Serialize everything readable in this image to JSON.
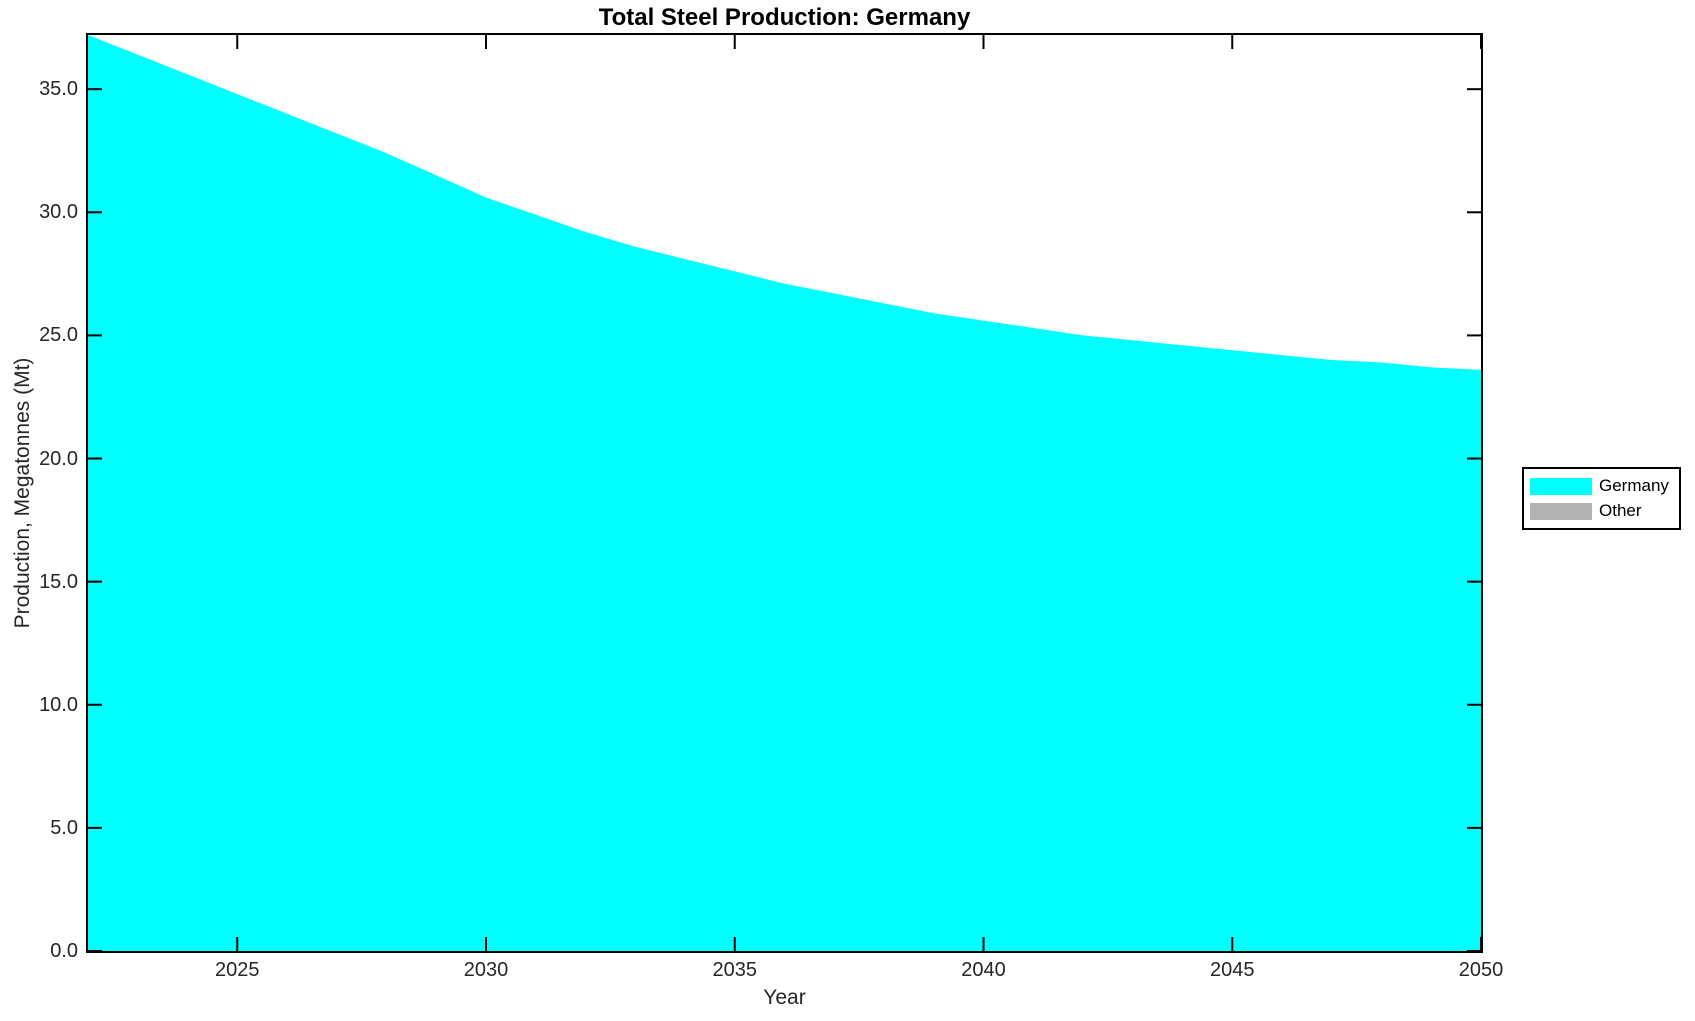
{
  "chart_data": {
    "type": "area",
    "title": "Total Steel Production: Germany",
    "xlabel": "Year",
    "ylabel": "Production, Megatonnes (Mt)",
    "xlim": [
      2022,
      2050
    ],
    "ylim": [
      0,
      37.2
    ],
    "grid": false,
    "box": true,
    "tick_direction": "in",
    "legend_position": "outside-right",
    "axis_color": "#000000",
    "text_color": "#262626",
    "background_color": "#FFFFFF",
    "xticks": [
      2025,
      2030,
      2035,
      2040,
      2045,
      2050
    ],
    "xtick_labels": [
      "2025",
      "2030",
      "2035",
      "2040",
      "2045",
      "2050"
    ],
    "yticks": [
      0,
      5,
      10,
      15,
      20,
      25,
      30,
      35
    ],
    "ytick_labels": [
      "0.0",
      "5.0",
      "10.0",
      "15.0",
      "20.0",
      "25.0",
      "30.0",
      "35.0"
    ],
    "x": [
      2022,
      2023,
      2024,
      2025,
      2026,
      2027,
      2028,
      2029,
      2030,
      2031,
      2032,
      2033,
      2034,
      2035,
      2036,
      2037,
      2038,
      2039,
      2040,
      2041,
      2042,
      2043,
      2044,
      2045,
      2046,
      2047,
      2048,
      2049,
      2050
    ],
    "series": [
      {
        "name": "Germany",
        "color": "#00FFFF",
        "values": [
          37.2,
          36.4,
          35.6,
          34.8,
          34.0,
          33.2,
          32.4,
          31.5,
          30.6,
          29.9,
          29.2,
          28.6,
          28.1,
          27.6,
          27.1,
          26.7,
          26.3,
          25.9,
          25.6,
          25.3,
          25.0,
          24.8,
          24.6,
          24.4,
          24.2,
          24.0,
          23.9,
          23.7,
          23.6
        ]
      }
    ],
    "legend": [
      {
        "label": "Germany",
        "color": "#00FFFF"
      },
      {
        "label": "Other",
        "color": "#B3B3B3"
      }
    ]
  }
}
